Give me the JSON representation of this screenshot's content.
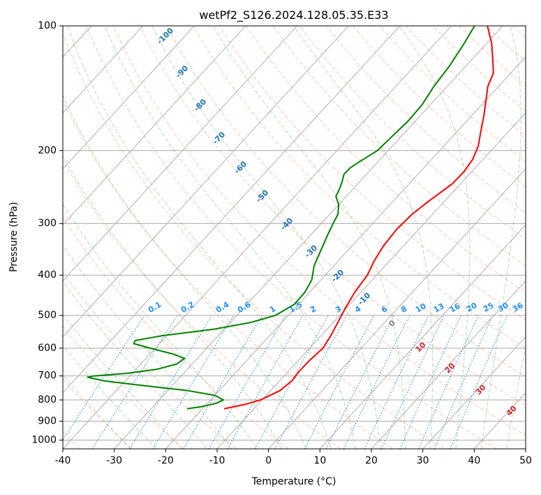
{
  "chart_data": {
    "type": "line",
    "title": "wetPf2_S126.2024.128.05.35.E33",
    "xlabel": "Temperature (°C)",
    "ylabel": "Pressure (hPa)",
    "xlim": [
      -40,
      50
    ],
    "ylim": [
      1050,
      100
    ],
    "y_scale": "log",
    "x_ticks": [
      -40,
      -30,
      -20,
      -10,
      0,
      10,
      20,
      30,
      40,
      50
    ],
    "y_ticks": [
      100,
      200,
      300,
      400,
      500,
      600,
      700,
      800,
      900,
      1000
    ],
    "grid": true,
    "skew_t": true,
    "colors": {
      "temperature": "#ff0000",
      "dewpoint": "#008000",
      "dry_adiabat": "#ff7f50",
      "moist_adiabat": "#2ca02c",
      "mixing_ratio": "#1e90ff",
      "isotherm_label": "#1f77b4",
      "grid": "#a9a9a9"
    },
    "series": [
      {
        "name": "Temperature",
        "pressure": [
          840,
          820,
          800,
          760,
          720,
          680,
          640,
          600,
          560,
          520,
          480,
          440,
          400,
          370,
          340,
          310,
          285,
          265,
          250,
          240,
          225,
          210,
          195,
          180,
          165,
          150,
          140,
          130,
          120,
          110,
          100
        ],
        "values": [
          -15.8,
          -12.5,
          -10.3,
          -8.2,
          -7.6,
          -7.9,
          -7.8,
          -7.4,
          -8.1,
          -9.1,
          -10.2,
          -11.2,
          -11.8,
          -13.0,
          -13.9,
          -14.3,
          -14.0,
          -13.1,
          -12.2,
          -11.6,
          -11.5,
          -12.0,
          -13.3,
          -15.4,
          -17.6,
          -20.2,
          -22.1,
          -23.4,
          -26.1,
          -29.1,
          -33.0
        ]
      },
      {
        "name": "Dewpoint",
        "pressure": [
          840,
          830,
          815,
          800,
          780,
          760,
          740,
          720,
          705,
          700,
          690,
          675,
          655,
          635,
          620,
          600,
          585,
          575,
          560,
          540,
          520,
          500,
          470,
          440,
          410,
          380,
          350,
          320,
          300,
          285,
          270,
          258,
          248,
          238,
          228,
          220,
          212,
          200,
          185,
          170,
          155,
          140,
          125,
          110,
          100
        ],
        "values": [
          -23.0,
          -20.5,
          -18.3,
          -17.5,
          -20.0,
          -26.0,
          -35.0,
          -44.0,
          -48.0,
          -47.0,
          -41.0,
          -36.0,
          -33.0,
          -32.5,
          -35.5,
          -41.0,
          -45.0,
          -45.3,
          -41.0,
          -32.0,
          -26.0,
          -22.5,
          -20.8,
          -20.9,
          -21.8,
          -23.8,
          -25.2,
          -26.7,
          -27.7,
          -28.4,
          -30.0,
          -32.0,
          -32.6,
          -33.4,
          -34.4,
          -34.3,
          -33.5,
          -32.1,
          -31.8,
          -31.4,
          -31.6,
          -32.6,
          -33.2,
          -34.4,
          -35.5
        ]
      }
    ],
    "isotherm_labels": [
      -100,
      -90,
      -80,
      -70,
      -60,
      -50,
      -40,
      -30,
      -20,
      -10
    ],
    "mixing_ratio_labels": [
      "0.1",
      "0.2",
      "0.4",
      "0.6",
      "1",
      "1.5",
      "2",
      "3",
      "4",
      "6",
      "8",
      "10",
      "13",
      "16",
      "20",
      "25",
      "30",
      "36"
    ],
    "moist_adiabat_labels": [
      "0",
      "10",
      "20",
      "30",
      "40"
    ]
  }
}
